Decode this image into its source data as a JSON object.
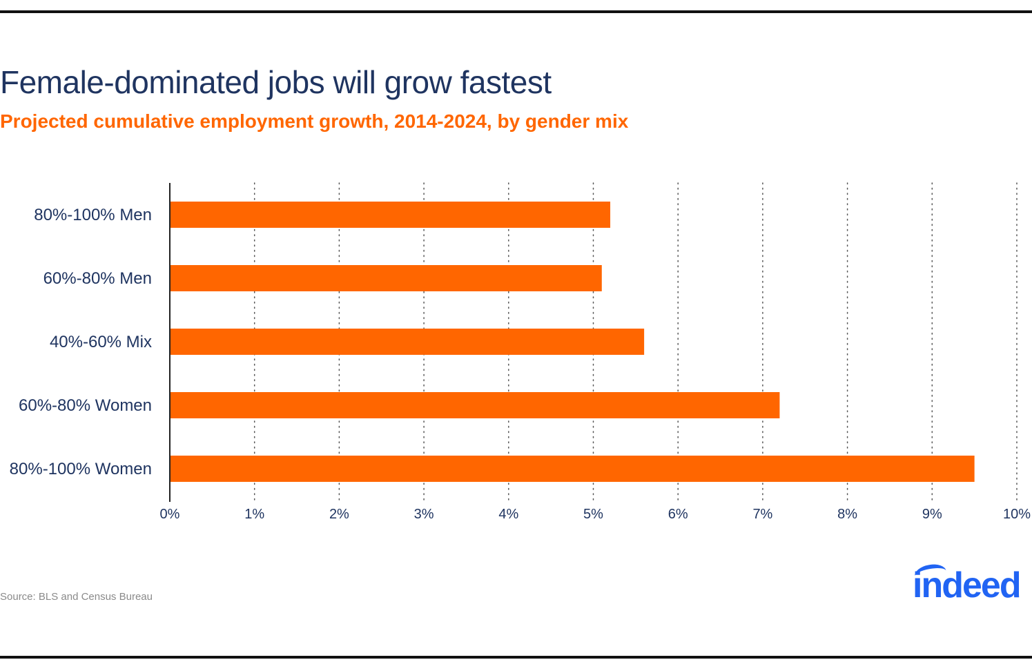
{
  "title": "Female-dominated jobs will grow fastest",
  "subtitle": "Projected cumulative employment growth, 2014-2024, by gender mix",
  "source": "Source: BLS and Census Bureau",
  "logo_text": "indeed",
  "colors": {
    "bar": "#ff6600",
    "title": "#1f3460",
    "subtitle": "#ff6600",
    "logo": "#2164f3",
    "source": "#8a8a8a"
  },
  "chart_data": {
    "type": "bar",
    "orientation": "horizontal",
    "title": "",
    "xlabel": "",
    "ylabel": "",
    "categories": [
      "80%-100% Men",
      "60%-80% Men",
      "40%-60% Mix",
      "60%-80% Women",
      "80%-100% Women"
    ],
    "values": [
      5.2,
      5.1,
      5.6,
      7.2,
      9.5
    ],
    "unit": "%",
    "xlim": [
      0,
      10
    ],
    "xticks": [
      "0%",
      "1%",
      "2%",
      "3%",
      "4%",
      "5%",
      "6%",
      "7%",
      "8%",
      "9%",
      "10%"
    ],
    "grid": "vertical dotted",
    "legend": "none"
  }
}
